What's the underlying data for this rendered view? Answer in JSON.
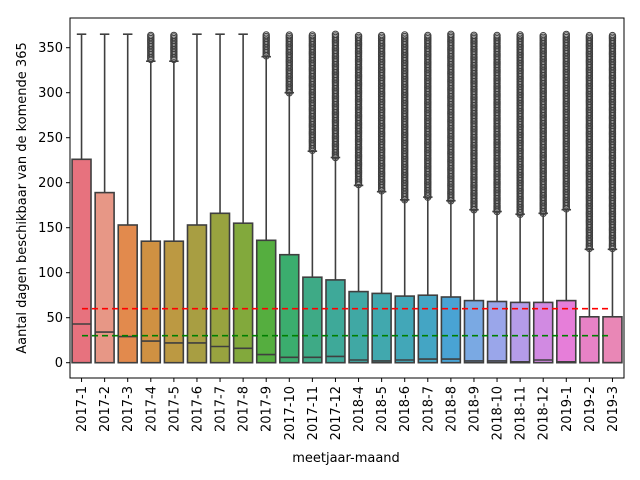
{
  "chart_data": {
    "type": "box",
    "title": "",
    "xlabel": "meetjaar-maand",
    "ylabel": "Aantal dagen beschikbaar van de komende 365",
    "ylim": [
      -17,
      383
    ],
    "yticks": [
      0,
      50,
      100,
      150,
      200,
      250,
      300,
      350
    ],
    "grid": false,
    "reference_lines": [
      {
        "y": 60,
        "color": "#ff0000",
        "style": "dashed"
      },
      {
        "y": 30,
        "color": "#008000",
        "style": "dashed"
      }
    ],
    "categories": [
      "2017-1",
      "2017-2",
      "2017-3",
      "2017-4",
      "2017-5",
      "2017-6",
      "2017-7",
      "2017-8",
      "2017-9",
      "2017-10",
      "2017-11",
      "2017-12",
      "2018-4",
      "2018-5",
      "2018-6",
      "2018-7",
      "2018-8",
      "2018-9",
      "2018-10",
      "2018-11",
      "2018-12",
      "2019-1",
      "2019-2",
      "2019-3"
    ],
    "boxes": [
      {
        "q1": 0,
        "median": 43,
        "q3": 226,
        "whisker_low": 0,
        "whisker_high": 365,
        "fliers_from": null,
        "color": "#e7727e"
      },
      {
        "q1": 0,
        "median": 34,
        "q3": 189,
        "whisker_low": 0,
        "whisker_high": 365,
        "fliers_from": null,
        "color": "#e79786"
      },
      {
        "q1": 0,
        "median": 29,
        "q3": 153,
        "whisker_low": 0,
        "whisker_high": 365,
        "fliers_from": null,
        "color": "#e28a4d"
      },
      {
        "q1": 0,
        "median": 24,
        "q3": 135,
        "whisker_low": 0,
        "whisker_high": 335,
        "fliers_from": 337,
        "color": "#cf9142"
      },
      {
        "q1": 0,
        "median": 22,
        "q3": 135,
        "whisker_low": 0,
        "whisker_high": 335,
        "fliers_from": 337,
        "color": "#bc9942"
      },
      {
        "q1": 0,
        "median": 22,
        "q3": 153,
        "whisker_low": 0,
        "whisker_high": 365,
        "fliers_from": null,
        "color": "#a89e42"
      },
      {
        "q1": 0,
        "median": 18,
        "q3": 166,
        "whisker_low": 0,
        "whisker_high": 365,
        "fliers_from": null,
        "color": "#98a33f"
      },
      {
        "q1": 0,
        "median": 16,
        "q3": 155,
        "whisker_low": 0,
        "whisker_high": 365,
        "fliers_from": null,
        "color": "#82a93c"
      },
      {
        "q1": 0,
        "median": 9,
        "q3": 136,
        "whisker_low": 0,
        "whisker_high": 340,
        "fliers_from": 341,
        "color": "#55ae3f"
      },
      {
        "q1": 0,
        "median": 6,
        "q3": 120,
        "whisker_low": 0,
        "whisker_high": 300,
        "fliers_from": 300,
        "color": "#3bad6e"
      },
      {
        "q1": 0,
        "median": 6,
        "q3": 95,
        "whisker_low": 0,
        "whisker_high": 235,
        "fliers_from": 236,
        "color": "#3eaa86"
      },
      {
        "q1": 0,
        "median": 7,
        "q3": 92,
        "whisker_low": 0,
        "whisker_high": 228,
        "fliers_from": 228,
        "color": "#3ea999"
      },
      {
        "q1": 0,
        "median": 3,
        "q3": 79,
        "whisker_low": 0,
        "whisker_high": 197,
        "fliers_from": 198,
        "color": "#40a8a4"
      },
      {
        "q1": 0,
        "median": 2,
        "q3": 77,
        "whisker_low": 0,
        "whisker_high": 190,
        "fliers_from": 191,
        "color": "#41a8ae"
      },
      {
        "q1": 0,
        "median": 3,
        "q3": 74,
        "whisker_low": 0,
        "whisker_high": 181,
        "fliers_from": 181,
        "color": "#42a7b8"
      },
      {
        "q1": 0,
        "median": 4,
        "q3": 75,
        "whisker_low": 0,
        "whisker_high": 184,
        "fliers_from": 184,
        "color": "#44a5c4"
      },
      {
        "q1": 0,
        "median": 4,
        "q3": 73,
        "whisker_low": 0,
        "whisker_high": 180,
        "fliers_from": 180,
        "color": "#49a3d4"
      },
      {
        "q1": 0,
        "median": 2,
        "q3": 69,
        "whisker_low": 0,
        "whisker_high": 170,
        "fliers_from": 170,
        "color": "#7aa9e3"
      },
      {
        "q1": 0,
        "median": 2,
        "q3": 68,
        "whisker_low": 0,
        "whisker_high": 168,
        "fliers_from": 168,
        "color": "#9aa6ea"
      },
      {
        "q1": 0,
        "median": 1,
        "q3": 67,
        "whisker_low": 0,
        "whisker_high": 165,
        "fliers_from": 165,
        "color": "#b59ce9"
      },
      {
        "q1": 0,
        "median": 3,
        "q3": 67,
        "whisker_low": 0,
        "whisker_high": 166,
        "fliers_from": 166,
        "color": "#d18ae2"
      },
      {
        "q1": 0,
        "median": 1,
        "q3": 69,
        "whisker_low": 0,
        "whisker_high": 170,
        "fliers_from": 171,
        "color": "#e67ed9"
      },
      {
        "q1": 0,
        "median": 0,
        "q3": 51,
        "whisker_low": 0,
        "whisker_high": 126,
        "fliers_from": 127,
        "color": "#e882c6"
      },
      {
        "q1": 0,
        "median": 0,
        "q3": 51,
        "whisker_low": 0,
        "whisker_high": 126,
        "fliers_from": 127,
        "color": "#e987b6"
      }
    ],
    "flier_max": 365
  }
}
